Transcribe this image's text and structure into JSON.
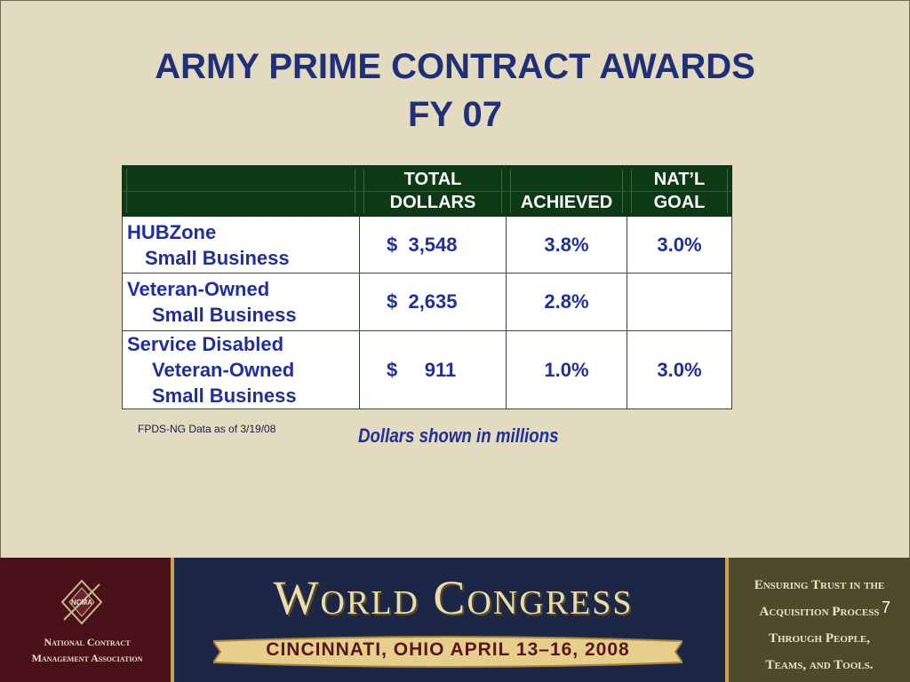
{
  "slide": {
    "title_line1": "ARMY PRIME CONTRACT AWARDS",
    "title_line2": "FY 07",
    "page_number": "7"
  },
  "table": {
    "header": {
      "col1": "",
      "col2_line1": "TOTAL",
      "col2_line2": "DOLLARS",
      "col3": "ACHIEVED",
      "col4_line1": "NAT’L",
      "col4_line2": "GOAL"
    },
    "rows": [
      {
        "label_line1": "HUBZone",
        "label_line2": "Small Business",
        "label_line3": "",
        "dollars": "$  3,548",
        "achieved": "3.8%",
        "goal": "3.0%"
      },
      {
        "label_line1": "Veteran-Owned",
        "label_line2": "Small Business",
        "label_line3": "",
        "dollars": "$  2,635",
        "achieved": "2.8%",
        "goal": ""
      },
      {
        "label_line1": "Service Disabled",
        "label_line2": "Veteran-Owned",
        "label_line3": "Small Business",
        "dollars": "$     911",
        "achieved": "1.0%",
        "goal": "3.0%"
      }
    ]
  },
  "notes": {
    "source": "FPDS-NG Data as of 3/19/08",
    "units": "Dollars shown in millions"
  },
  "footer": {
    "org_name_line1": "National Contract",
    "org_name_line2": "Management Association",
    "emblem_text": "NCMA",
    "event_title": "World Congress",
    "event_location_dates": "CINCINNATI, OHIO    APRIL 13–16, 2008",
    "tagline_line1": "Ensuring Trust in the",
    "tagline_line2": "Acquisition Process",
    "tagline_line3": "Through People,",
    "tagline_line4": "Teams, and Tools."
  },
  "colors": {
    "background": "#e3dbbf",
    "title": "#1f2f78",
    "header_fill": "#0d3a15",
    "cell_text": "#1f2f9e"
  }
}
